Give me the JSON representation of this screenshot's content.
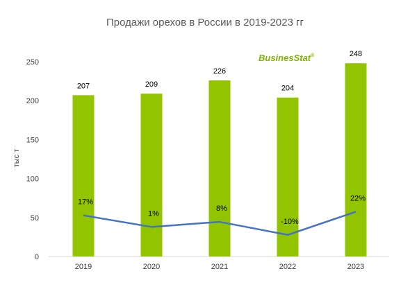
{
  "chart_data": {
    "type": "bar",
    "title": "Продажи орехов в России в 2019-2023 гг",
    "ylabel": "тыс т",
    "xlabel": "",
    "ylim": [
      0,
      250
    ],
    "yticks": [
      0,
      50,
      100,
      150,
      200,
      250
    ],
    "grid": false,
    "categories": [
      "2019",
      "2020",
      "2021",
      "2022",
      "2023"
    ],
    "series": [
      {
        "type": "bar",
        "values": [
          207,
          209,
          226,
          204,
          248
        ],
        "color": "#92C500",
        "labels": [
          "207",
          "209",
          "226",
          "204",
          "248"
        ]
      },
      {
        "type": "line",
        "values": [
          17,
          1,
          8,
          -10,
          22
        ],
        "unit": "%",
        "color": "#4472C4",
        "labels": [
          "17%",
          "1%",
          "8%",
          "-10%",
          "22%"
        ]
      }
    ]
  },
  "logo": {
    "text_a": "Busines",
    "text_b": "Stat",
    "mark": "®",
    "color": "#7DB400"
  }
}
